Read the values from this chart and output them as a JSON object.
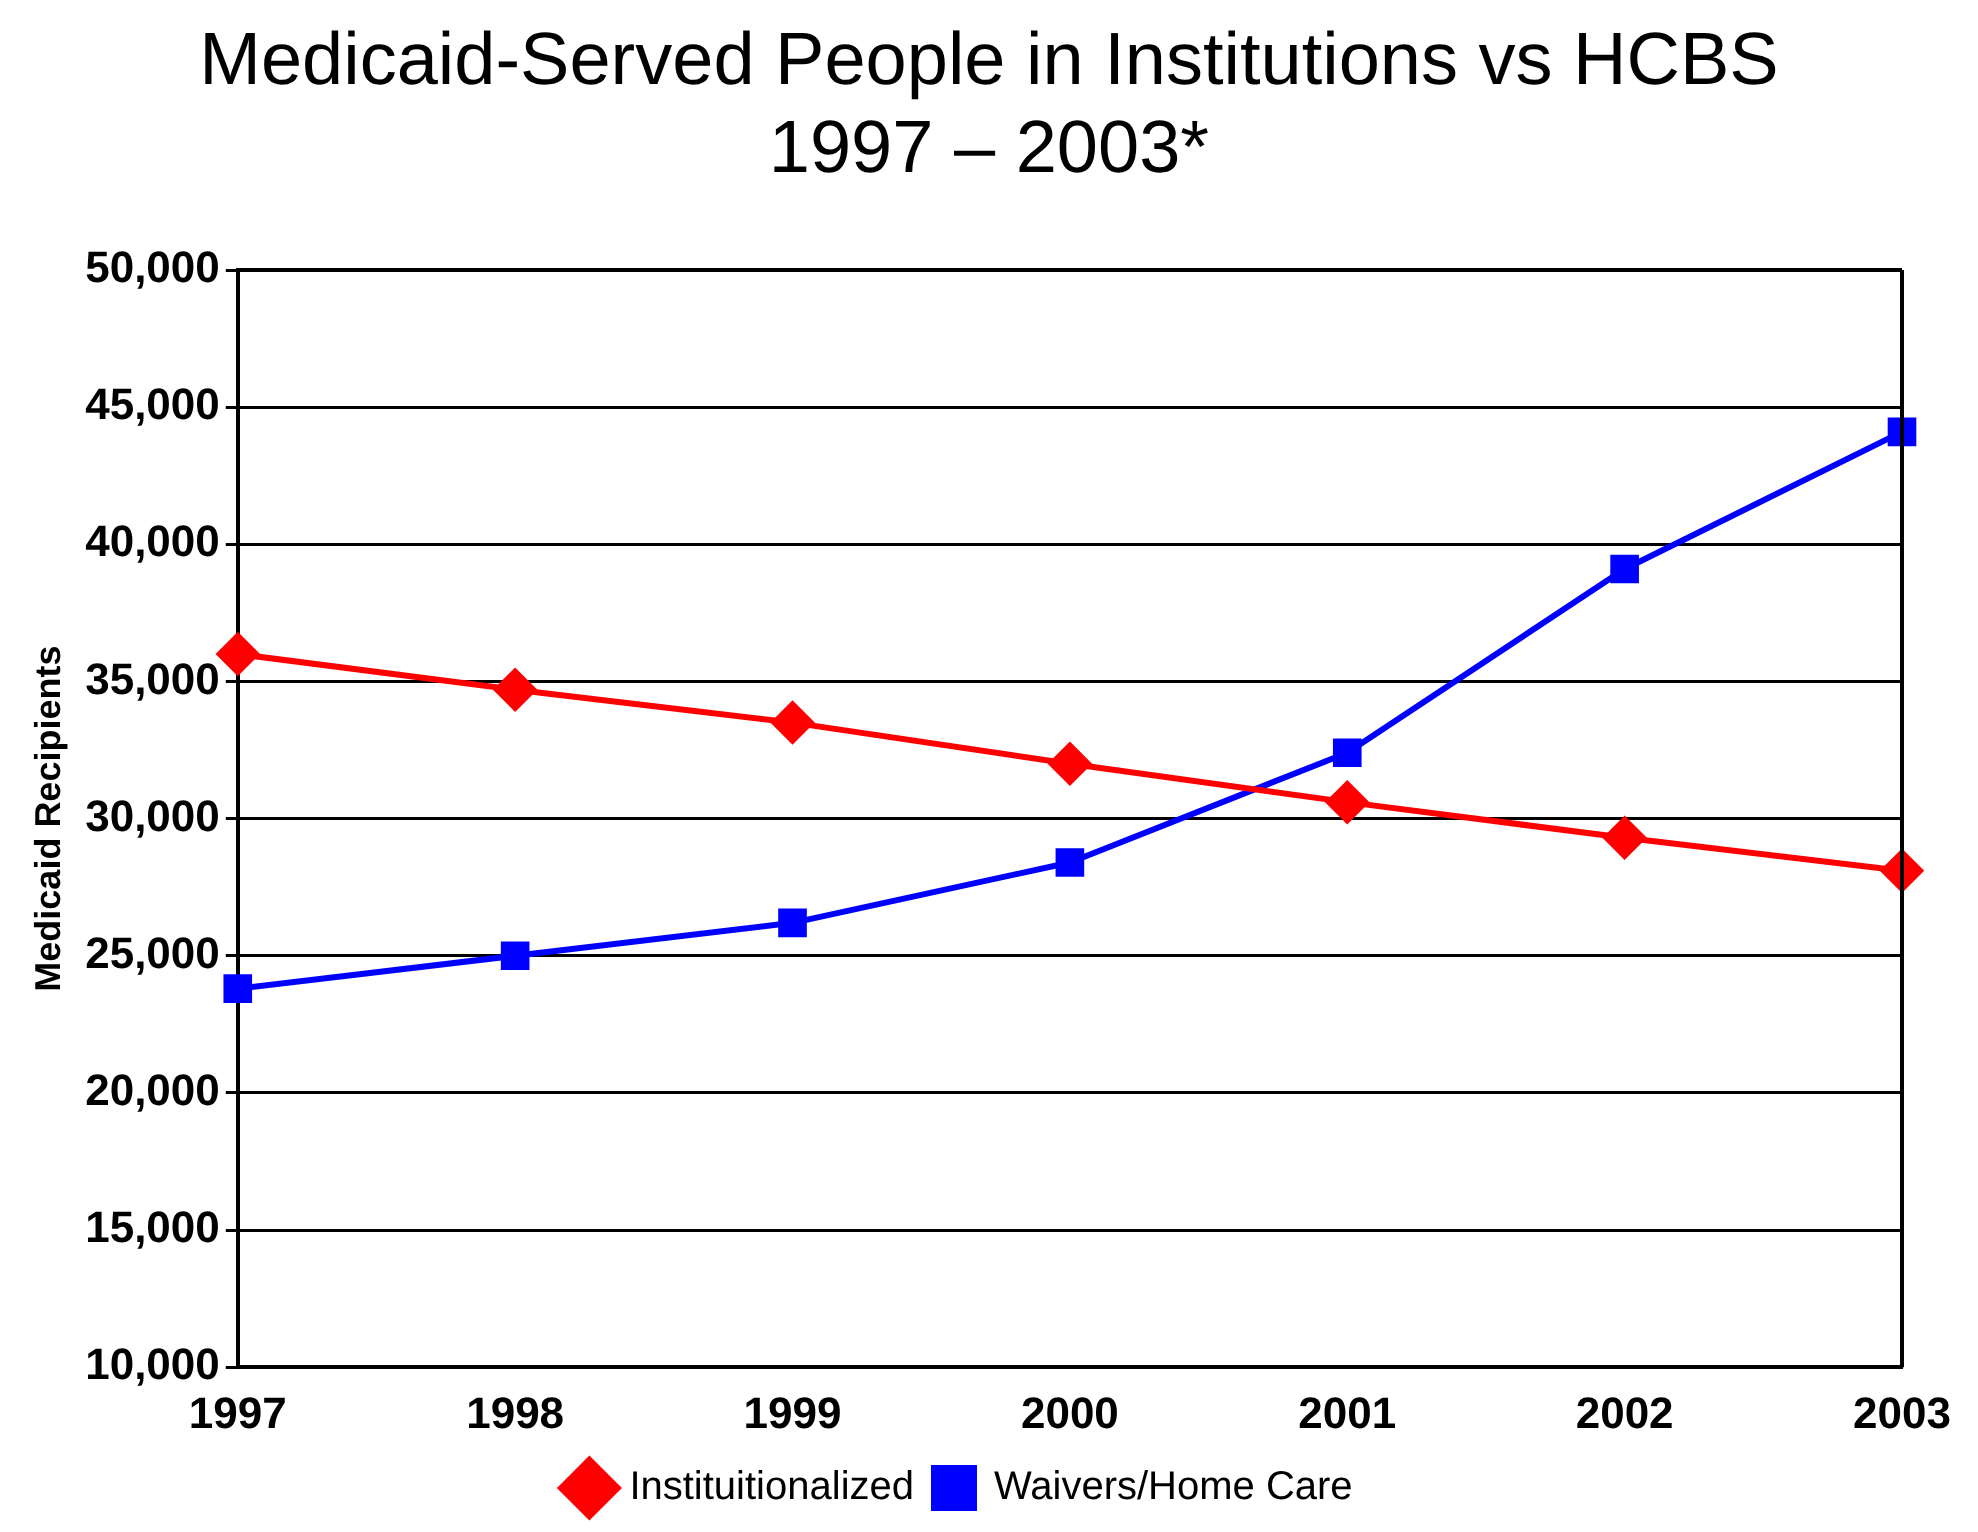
{
  "chart_data": {
    "type": "line",
    "title": "Medicaid-Served People in Institutions vs HCBS",
    "subtitle": "1997 – 2003*",
    "ylabel": "Medicaid Recipients",
    "categories": [
      "1997",
      "1998",
      "1999",
      "2000",
      "2001",
      "2002",
      "2003"
    ],
    "series": [
      {
        "name": "Instituitionalized",
        "color": "#ff0000",
        "marker": "diamond",
        "values": [
          36000,
          34700,
          33500,
          32000,
          30600,
          29300,
          28100
        ]
      },
      {
        "name": "Waivers/Home Care",
        "color": "#0000ff",
        "marker": "square",
        "values": [
          23800,
          25000,
          26200,
          28400,
          32400,
          39100,
          44100
        ]
      }
    ],
    "ylim": [
      10000,
      50000
    ],
    "yticks": [
      {
        "value": 10000,
        "label": "10,000"
      },
      {
        "value": 15000,
        "label": "15,000"
      },
      {
        "value": 20000,
        "label": "20,000"
      },
      {
        "value": 25000,
        "label": "25,000"
      },
      {
        "value": 30000,
        "label": "30,000"
      },
      {
        "value": 35000,
        "label": "35,000"
      },
      {
        "value": 40000,
        "label": "40,000"
      },
      {
        "value": 45000,
        "label": "45,000"
      },
      {
        "value": 50000,
        "label": "50,000"
      }
    ],
    "grid": "y",
    "legend": "bottom",
    "line_style": "solid"
  }
}
